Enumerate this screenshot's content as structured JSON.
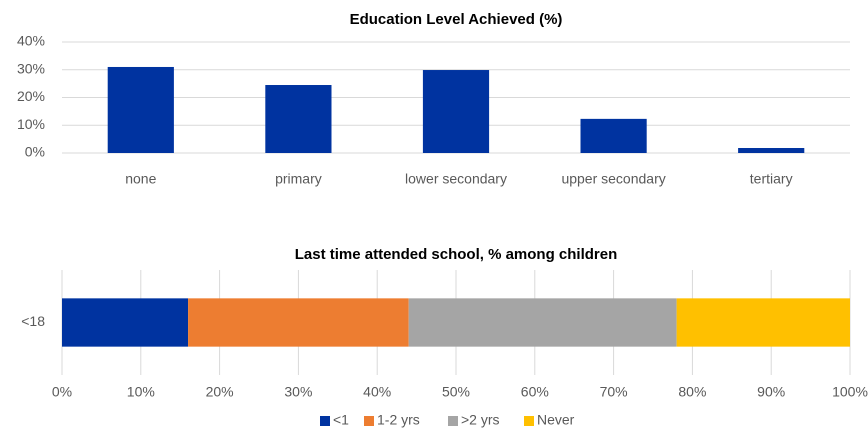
{
  "chart_data": [
    {
      "type": "bar",
      "title": "Education Level Achieved (%)",
      "categories": [
        "none",
        "primary",
        "lower secondary",
        "upper secondary",
        "tertiary"
      ],
      "values": [
        31,
        24.5,
        29.9,
        12.3,
        1.8
      ],
      "color": "#0033a0",
      "ylim": [
        0,
        40
      ],
      "yticks": [
        {
          "value": 0,
          "label": "0%"
        },
        {
          "value": 10,
          "label": "10%"
        },
        {
          "value": 20,
          "label": "20%"
        },
        {
          "value": 30,
          "label": "30%"
        },
        {
          "value": 40,
          "label": "40%"
        }
      ],
      "grid": true
    },
    {
      "type": "stacked-barh",
      "title": "Last time attended school, % among children",
      "categories": [
        "<18"
      ],
      "series": [
        {
          "name": "<1",
          "color": "#0033a0",
          "values": [
            16
          ]
        },
        {
          "name": "1-2 yrs",
          "color": "#ed7d31",
          "values": [
            28
          ]
        },
        {
          "name": ">2 yrs",
          "color": "#a5a5a5",
          "values": [
            34
          ]
        },
        {
          "name": "Never",
          "color": "#ffc000",
          "values": [
            22
          ]
        }
      ],
      "xlim": [
        0,
        100
      ],
      "xticks": [
        {
          "value": 0,
          "label": "0%"
        },
        {
          "value": 10,
          "label": "10%"
        },
        {
          "value": 20,
          "label": "20%"
        },
        {
          "value": 30,
          "label": "30%"
        },
        {
          "value": 40,
          "label": "40%"
        },
        {
          "value": 50,
          "label": "50%"
        },
        {
          "value": 60,
          "label": "60%"
        },
        {
          "value": 70,
          "label": "70%"
        },
        {
          "value": 80,
          "label": "80%"
        },
        {
          "value": 90,
          "label": "90%"
        },
        {
          "value": 100,
          "label": "100%"
        }
      ],
      "grid": true,
      "legend": "bottom"
    }
  ]
}
